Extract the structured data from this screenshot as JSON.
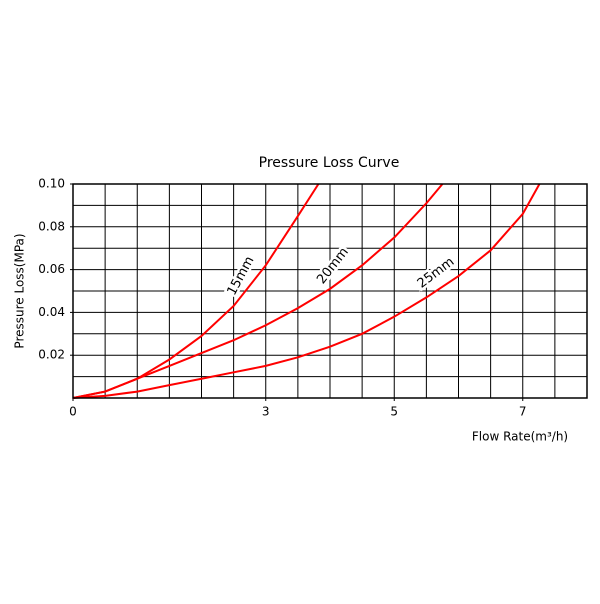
{
  "chart_data": {
    "type": "line",
    "title": "Pressure Loss Curve",
    "x_label": "Flow Rate(m³/h)",
    "y_label": "Pressure Loss(MPa)",
    "xlim": [
      0,
      8
    ],
    "ylim": [
      0,
      0.1
    ],
    "xticks": [
      0,
      3,
      5,
      7
    ],
    "yticks": [
      0.02,
      0.04,
      0.06,
      0.08,
      {
        "value": 0.1,
        "label": "0.10"
      }
    ],
    "xgrid": [
      0,
      0.5,
      1,
      1.5,
      2,
      2.5,
      3,
      3.5,
      4,
      4.5,
      5,
      5.5,
      6,
      6.5,
      7,
      7.5,
      8
    ],
    "ygrid": [
      0,
      0.01,
      0.02,
      0.03,
      0.04,
      0.05,
      0.06,
      0.07,
      0.08,
      0.09,
      0.1
    ],
    "grid": true,
    "series": [
      {
        "name": "15mm",
        "color": "#ff0000",
        "x": [
          0,
          0.5,
          1,
          1.5,
          2,
          2.5,
          3,
          3.5,
          3.82
        ],
        "values": [
          0,
          0.003,
          0.009,
          0.018,
          0.029,
          0.043,
          0.062,
          0.085,
          0.1
        ]
      },
      {
        "name": "20mm",
        "color": "#ff0000",
        "x": [
          0,
          0.5,
          1,
          1.5,
          2,
          2.5,
          3,
          3.5,
          4,
          4.5,
          5,
          5.5,
          5.75
        ],
        "values": [
          0,
          0.003,
          0.009,
          0.015,
          0.021,
          0.027,
          0.034,
          0.042,
          0.051,
          0.062,
          0.075,
          0.091,
          0.1
        ]
      },
      {
        "name": "25mm",
        "color": "#ff0000",
        "x": [
          0,
          0.5,
          1,
          1.5,
          2,
          2.5,
          3,
          3.5,
          4,
          4.5,
          5,
          5.5,
          6,
          6.5,
          7,
          7.26
        ],
        "values": [
          0,
          0.001,
          0.003,
          0.006,
          0.009,
          0.012,
          0.015,
          0.019,
          0.024,
          0.03,
          0.038,
          0.047,
          0.057,
          0.069,
          0.086,
          0.1
        ]
      }
    ]
  }
}
